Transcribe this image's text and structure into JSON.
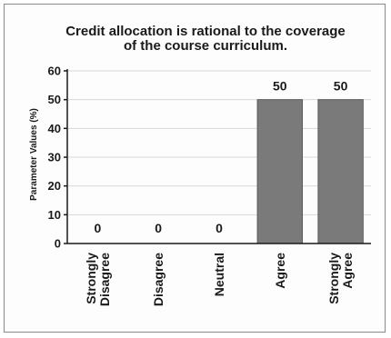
{
  "chart_data": {
    "type": "bar",
    "title_lines": [
      "Credit allocation is rational to the coverage",
      "of the course curriculum."
    ],
    "ylabel": "Parameter Values (%)",
    "xlabel": "",
    "categories": [
      [
        "Strongly",
        "Disagree"
      ],
      [
        "Disagree"
      ],
      [
        "Neutral"
      ],
      [
        "Agree"
      ],
      [
        "Strongly",
        "Agree"
      ]
    ],
    "values": [
      0,
      0,
      0,
      50,
      50
    ],
    "data_labels": [
      "0",
      "0",
      "0",
      "50",
      "50"
    ],
    "ylim": [
      0,
      60
    ],
    "yticks": [
      "0",
      "10",
      "20",
      "30",
      "40",
      "50",
      "60"
    ],
    "grid": true,
    "bar_color": "#7a7a7a"
  }
}
